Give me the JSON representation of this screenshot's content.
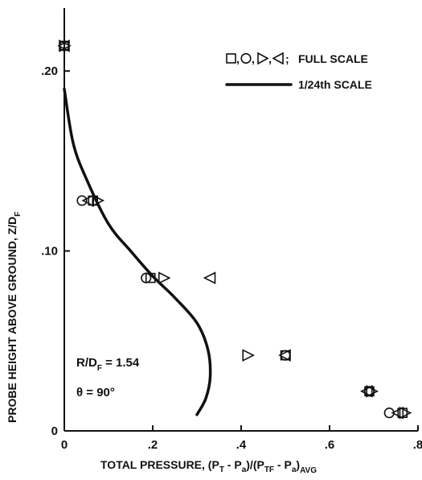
{
  "chart_data": {
    "type": "scatter",
    "xlabel": {
      "main": "TOTAL PRESSURE, (P",
      "sub1": "T",
      "mid1": " - P",
      "sub2": "a",
      "mid2": ")/(P",
      "sub3": "TF",
      "mid3": " - P",
      "sub4": "a",
      "mid4": ")",
      "sub5": "AVG"
    },
    "ylabel": {
      "main": "PROBE HEIGHT ABOVE GROUND, Z/D",
      "sub": "F"
    },
    "xlim": [
      0,
      0.8
    ],
    "ylim": [
      0,
      0.235
    ],
    "x_ticks": [
      {
        "value": 0,
        "label": "0"
      },
      {
        "value": 0.2,
        "label": ".2"
      },
      {
        "value": 0.4,
        "label": ".4"
      },
      {
        "value": 0.6,
        "label": ".6"
      },
      {
        "value": 0.8,
        "label": ".8"
      }
    ],
    "y_ticks": [
      {
        "value": 0,
        "label": "0"
      },
      {
        "value": 0.1,
        "label": ".10"
      },
      {
        "value": 0.2,
        "label": ".20"
      }
    ],
    "grid": false,
    "legend": {
      "position": "top-right",
      "markers_label": "FULL SCALE",
      "markers_separator": ";",
      "line_label": "1/24th SCALE"
    },
    "annotations": [
      {
        "main": "R/D",
        "sub": "F",
        "rest": " = 1.54"
      },
      {
        "main": "θ = 90°"
      }
    ],
    "series": [
      {
        "marker": "square",
        "points": [
          [
            0.0,
            0.214
          ],
          [
            0.065,
            0.128
          ],
          [
            0.195,
            0.085
          ],
          [
            0.5,
            0.042
          ],
          [
            0.69,
            0.022
          ],
          [
            0.765,
            0.01
          ]
        ]
      },
      {
        "marker": "circle",
        "points": [
          [
            0.0,
            0.214
          ],
          [
            0.04,
            0.128
          ],
          [
            0.185,
            0.085
          ],
          [
            0.5,
            0.042
          ],
          [
            0.69,
            0.022
          ],
          [
            0.735,
            0.01
          ]
        ]
      },
      {
        "marker": "triangle-right",
        "points": [
          [
            0.0,
            0.214
          ],
          [
            0.075,
            0.128
          ],
          [
            0.225,
            0.085
          ],
          [
            0.415,
            0.042
          ],
          [
            0.695,
            0.022
          ],
          [
            0.77,
            0.01
          ]
        ]
      },
      {
        "marker": "triangle-left",
        "points": [
          [
            0.0,
            0.214
          ],
          [
            0.055,
            0.128
          ],
          [
            0.33,
            0.085
          ],
          [
            0.5,
            0.042
          ],
          [
            0.685,
            0.022
          ],
          [
            0.755,
            0.01
          ]
        ]
      },
      {
        "type": "line",
        "points": [
          [
            0.0,
            0.19
          ],
          [
            0.02,
            0.16
          ],
          [
            0.05,
            0.14
          ],
          [
            0.1,
            0.115
          ],
          [
            0.15,
            0.1
          ],
          [
            0.2,
            0.086
          ],
          [
            0.25,
            0.074
          ],
          [
            0.3,
            0.06
          ],
          [
            0.325,
            0.045
          ],
          [
            0.33,
            0.03
          ],
          [
            0.32,
            0.018
          ],
          [
            0.3,
            0.009
          ]
        ]
      }
    ]
  }
}
